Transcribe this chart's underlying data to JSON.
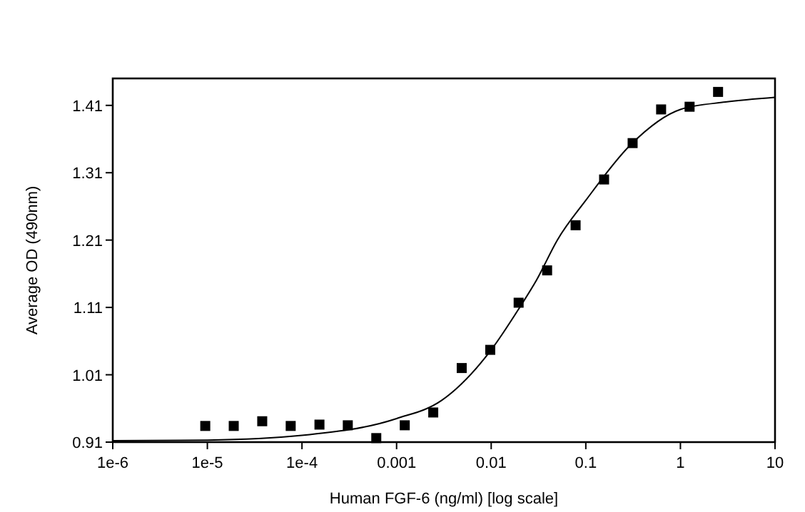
{
  "chart_data": {
    "type": "scatter",
    "xlabel": "Human FGF-6 (ng/ml) [log scale]",
    "ylabel": "Average OD (490nm)",
    "log": "x",
    "grid": false,
    "xlim": [
      1e-06,
      10
    ],
    "ylim": [
      0.91,
      1.45
    ],
    "xticks": [
      {
        "value": 1e-06,
        "label": "1e-6"
      },
      {
        "value": 1e-05,
        "label": "1e-5"
      },
      {
        "value": 0.0001,
        "label": "1e-4"
      },
      0.001,
      0.01,
      0.1,
      1,
      10
    ],
    "yticks": [
      0.91,
      1.01,
      1.11,
      1.21,
      1.31,
      1.41
    ],
    "series": [
      {
        "marker": "square",
        "color": "#000000",
        "x": [
          9.5e-06,
          1.9e-05,
          3.8e-05,
          7.6e-05,
          0.000153,
          0.000305,
          0.00061,
          0.00122,
          0.00244,
          0.00488,
          0.00977,
          0.0195,
          0.039,
          0.078,
          0.156,
          0.3125,
          0.625,
          1.25,
          2.5
        ],
        "values": [
          0.934,
          0.934,
          0.941,
          0.934,
          0.936,
          0.935,
          0.916,
          0.935,
          0.954,
          1.02,
          1.047,
          1.117,
          1.165,
          1.232,
          1.3,
          1.354,
          1.404,
          1.408,
          1.43
        ]
      },
      {
        "type": "line",
        "marker": "none",
        "color": "#000000",
        "x": [
          1e-06,
          1e-05,
          0.0001,
          0.001,
          0.003,
          0.01,
          0.02,
          0.03,
          0.05,
          0.1,
          0.3,
          1,
          3,
          10
        ],
        "values": [
          0.912,
          0.913,
          0.92,
          0.945,
          0.972,
          1.047,
          1.11,
          1.15,
          1.21,
          1.269,
          1.352,
          1.404,
          1.415,
          1.422
        ]
      }
    ]
  }
}
